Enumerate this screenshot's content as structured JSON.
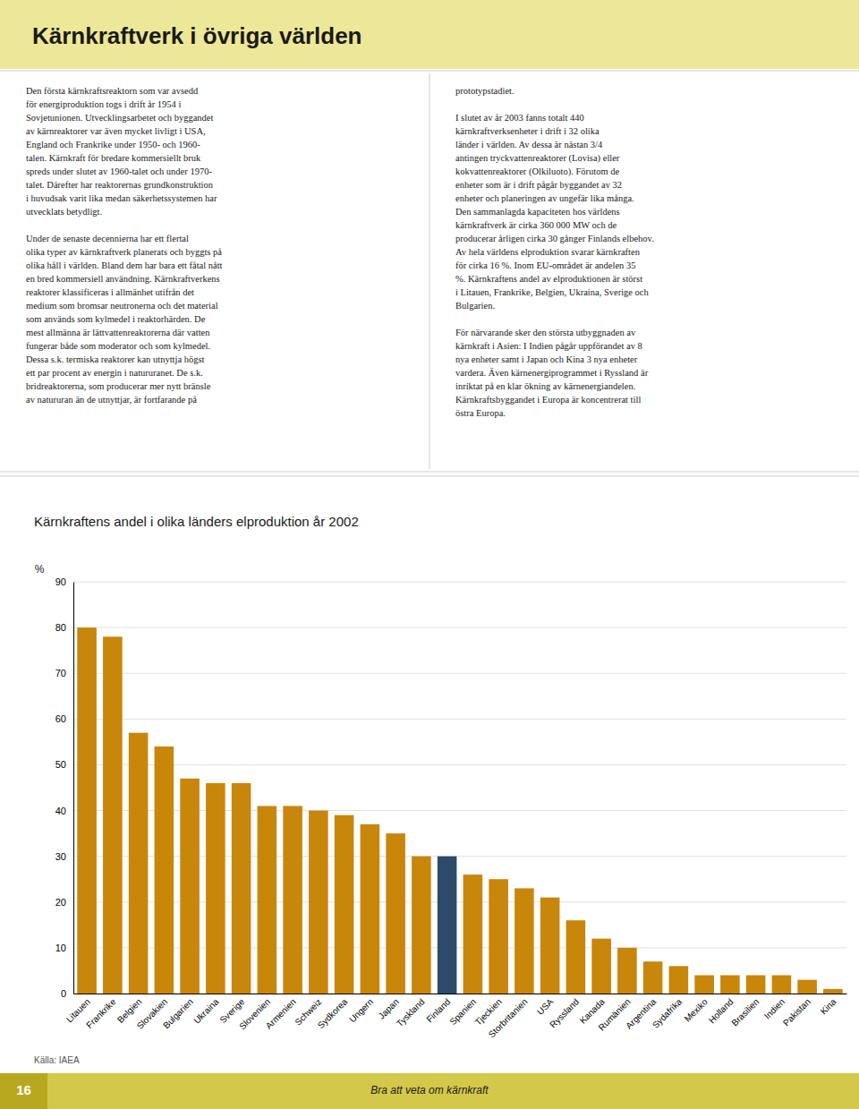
{
  "page_title": "Kärnkraftverk i övriga världen",
  "text_left": [
    [
      "Den första kärnkraftsreaktorn som var avsedd",
      "för energiproduktion togs i drift år 1954 i",
      "Sovjetunionen. Utvecklingsarbetet och byggandet",
      "av kärnreaktorer var även mycket livligt i USA,",
      "England och Frankrike under 1950- och 1960-",
      "talen. Kärnkraft för bredare kommersiellt bruk",
      "spreds under slutet av 1960-talet och under 1970-",
      "talet. Därefter har reaktorernas grundkonstruktion",
      "i huvudsak varit lika medan säkerhetssystemen har",
      "utvecklats betydligt."
    ],
    [
      "Under de senaste decennierna har ett flertal",
      "olika typer av kärnkraftverk planerats och byggts på",
      "olika håll i världen. Bland dem har bara ett fåtal nått",
      "en bred kommersiell användning. Kärnkraftverkens",
      "reaktorer klassificeras i allmänhet utifrån det",
      "medium som bromsar neutronerna och det material",
      "som används som kylmedel i reaktorhärden. De",
      "mest allmänna är lättvattenreaktorerna där vatten",
      "fungerar både som moderator och som kylmedel.",
      "Dessa s.k. termiska reaktorer kan utnyttja högst",
      "ett par procent av energin i natururanet. De s.k.",
      "bridreaktorerna, som producerar mer nytt bränsle",
      "av natururan än de utnyttjar, är fortfarande på"
    ]
  ],
  "text_right": [
    [
      "prototypstadiet."
    ],
    [
      "I slutet av år 2003 fanns totalt 440",
      "kärnkraftverksenheter i drift i 32 olika",
      "länder i världen. Av dessa är nästan 3/4",
      "antingen tryckvattenreaktorer (Lovisa) eller",
      "kokvattenreaktorer (Olkiluoto). Förutom de",
      "enheter som är i drift pågår byggandet av 32",
      "enheter och planeringen av ungefär lika många.",
      "Den sammanlagda kapaciteten hos världens",
      "kärnkraftverk är cirka 360 000 MW och de",
      "producerar årligen cirka 30 gånger Finlands elbehov.",
      "Av hela världens elproduktion svarar kärnkraften",
      "för cirka 16 %. Inom EU-området är andelen 35",
      "%. Kärnkraftens andel av elproduktionen är störst",
      "i Litauen, Frankrike, Belgien, Ukraina, Sverige och",
      "Bulgarien."
    ],
    [
      "För närvarande sker den största utbyggnaden av",
      "kärnkraft i Asien: I Indien pågår uppförandet av 8",
      "nya enheter samt i Japan och Kina 3 nya enheter",
      "vardera. Även kärnenergiprogrammet i Ryssland är",
      "inriktat på en klar ökning av kärnenergiandelen.",
      "Kärnkraftsbyggandet i Europa är koncentrerat till",
      "östra Europa."
    ]
  ],
  "chart_data": {
    "type": "bar",
    "title": "Kärnkraftens andel i olika länders elproduktion år 2002",
    "ylabel": "%",
    "categories": [
      "Litauen",
      "Frankrike",
      "Belgien",
      "Slovakien",
      "Bulgarien",
      "Ukraina",
      "Sverige",
      "Slovenien",
      "Armenien",
      "Schweiz",
      "Sydkorea",
      "Ungern",
      "Japan",
      "Tyskland",
      "Finland",
      "Spanien",
      "Tjeckien",
      "Storbritanien",
      "USA",
      "Ryssland",
      "Kanada",
      "Rumänien",
      "Argentina",
      "Sydafrika",
      "Mexiko",
      "Holland",
      "Brasilien",
      "Indien",
      "Pakistan",
      "Kina"
    ],
    "values": [
      80,
      78,
      57,
      54,
      47,
      46,
      46,
      41,
      41,
      40,
      39,
      37,
      35,
      30,
      30,
      26,
      25,
      23,
      21,
      16,
      12,
      10,
      7,
      6,
      4,
      4,
      4,
      4,
      3,
      1
    ],
    "colors": [
      "#c8860a",
      "#c8860a",
      "#c8860a",
      "#c8860a",
      "#c8860a",
      "#c8860a",
      "#c8860a",
      "#c8860a",
      "#c8860a",
      "#c8860a",
      "#c8860a",
      "#c8860a",
      "#c8860a",
      "#c8860a",
      "#2e4a6b",
      "#c8860a",
      "#c8860a",
      "#c8860a",
      "#c8860a",
      "#c8860a",
      "#c8860a",
      "#c8860a",
      "#c8860a",
      "#c8860a",
      "#c8860a",
      "#c8860a",
      "#c8860a",
      "#c8860a",
      "#c8860a",
      "#c8860a"
    ],
    "ylim": [
      0,
      90
    ],
    "yticks": [
      0,
      10,
      20,
      30,
      40,
      50,
      60,
      70,
      80,
      90
    ],
    "grid": true
  },
  "source": "Källa: IAEA",
  "footer_left": "16",
  "footer_right": "Bra att veta om kärnkraft"
}
